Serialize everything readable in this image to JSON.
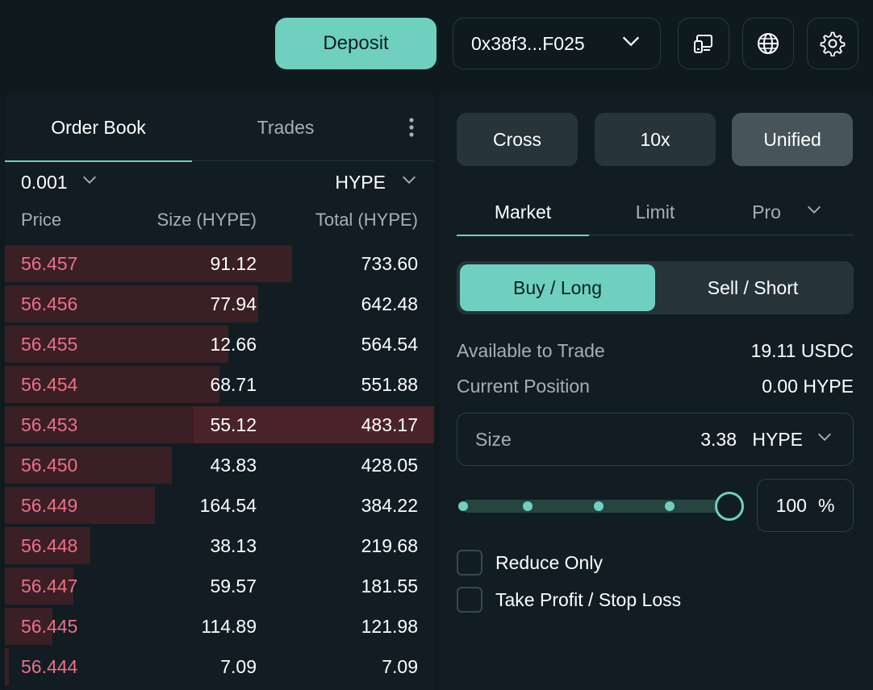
{
  "header": {
    "deposit_label": "Deposit",
    "wallet_address": "0x38f3...F025"
  },
  "orderbook": {
    "tabs": [
      {
        "label": "Order Book",
        "active": true
      },
      {
        "label": "Trades",
        "active": false
      }
    ],
    "precision": "0.001",
    "asset": "HYPE",
    "columns": {
      "price": "Price",
      "size": "Size (HYPE)",
      "total": "Total (HYPE)"
    },
    "asks": [
      {
        "price": "56.457",
        "size": "91.12",
        "total": "733.60",
        "depth_pct": 67
      },
      {
        "price": "56.456",
        "size": "77.94",
        "total": "642.48",
        "depth_pct": 59
      },
      {
        "price": "56.455",
        "size": "12.66",
        "total": "564.54",
        "depth_pct": 52
      },
      {
        "price": "56.454",
        "size": "68.71",
        "total": "551.88",
        "depth_pct": 50
      },
      {
        "price": "56.453",
        "size": "55.12",
        "total": "483.17",
        "depth_pct": 44,
        "highlighted": true
      },
      {
        "price": "56.450",
        "size": "43.83",
        "total": "428.05",
        "depth_pct": 39
      },
      {
        "price": "56.449",
        "size": "164.54",
        "total": "384.22",
        "depth_pct": 35
      },
      {
        "price": "56.448",
        "size": "38.13",
        "total": "219.68",
        "depth_pct": 20
      },
      {
        "price": "56.447",
        "size": "59.57",
        "total": "181.55",
        "depth_pct": 16
      },
      {
        "price": "56.445",
        "size": "114.89",
        "total": "121.98",
        "depth_pct": 11
      },
      {
        "price": "56.444",
        "size": "7.09",
        "total": "7.09",
        "depth_pct": 1
      }
    ]
  },
  "trade": {
    "margin_mode": "Cross",
    "leverage": "10x",
    "account_mode": "Unified",
    "order_tabs": {
      "market": "Market",
      "limit": "Limit",
      "pro": "Pro"
    },
    "side": {
      "buy": "Buy / Long",
      "sell": "Sell / Short"
    },
    "available_label": "Available to Trade",
    "available_value": "19.11 USDC",
    "position_label": "Current Position",
    "position_value": "0.00 HYPE",
    "size_label": "Size",
    "size_value": "3.38",
    "size_unit": "HYPE",
    "slider_percent": "100",
    "percent_sign": "%",
    "reduce_only": "Reduce Only",
    "tp_sl": "Take Profit / Stop Loss"
  },
  "colors": {
    "accent": "#6fd0c0",
    "ask_text": "#ed7088",
    "depth_bar": "#3a1f25",
    "background": "#0f1a1f"
  }
}
